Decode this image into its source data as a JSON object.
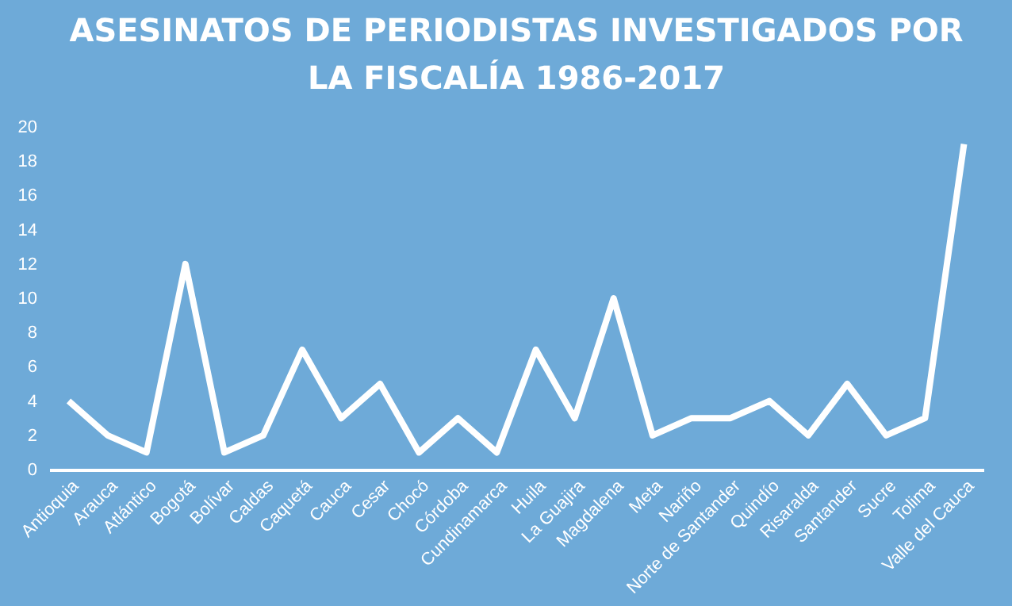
{
  "chart_data": {
    "type": "line",
    "title": "ASESINATOS DE PERIODISTAS INVESTIGADOS POR LA FISCALÍA 1986-2017",
    "categories": [
      "Antioquia",
      "Arauca",
      "Atlántico",
      "Bogotá",
      "Bolívar",
      "Caldas",
      "Caquetá",
      "Cauca",
      "Cesar",
      "Chocó",
      "Córdoba",
      "Cundinamarca",
      "Huila",
      "La Guajira",
      "Magdalena",
      "Meta",
      "Nariño",
      "Norte de Santander",
      "Quindío",
      "Risaralda",
      "Santander",
      "Sucre",
      "Tolima",
      "Valle del Cauca"
    ],
    "series": [
      {
        "color": "#ffffff",
        "values": [
          4,
          2,
          1,
          12,
          1,
          2,
          7,
          3,
          5,
          1,
          3,
          1,
          7,
          3,
          10,
          2,
          3,
          3,
          4,
          2,
          5,
          2,
          3,
          19
        ]
      }
    ],
    "ylim": [
      0,
      20
    ],
    "yticks": [
      0,
      2,
      4,
      6,
      8,
      10,
      12,
      14,
      16,
      18,
      20
    ],
    "grid": false,
    "legend": false,
    "marker": "none",
    "line_style": "solid"
  }
}
